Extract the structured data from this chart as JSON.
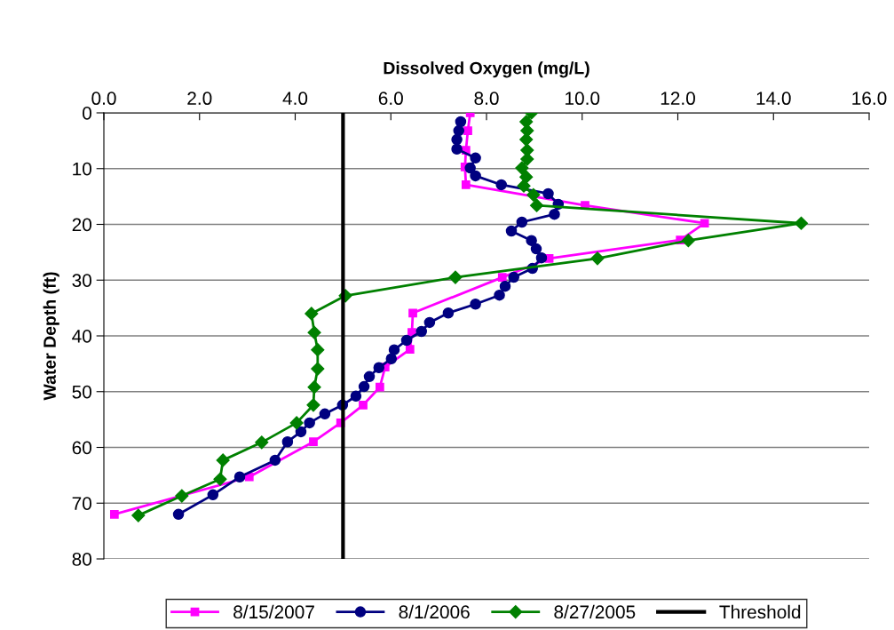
{
  "chart_data": {
    "type": "line",
    "xlabel": "Dissolved Oxygen (mg/L)",
    "ylabel": "Water Depth (ft)",
    "xlim": [
      0,
      16
    ],
    "xticks": [
      {
        "value": 0,
        "label": "0.0"
      },
      {
        "value": 2,
        "label": "2.0"
      },
      {
        "value": 4,
        "label": "4.0"
      },
      {
        "value": 6,
        "label": "6.0"
      },
      {
        "value": 8,
        "label": "8.0"
      },
      {
        "value": 10,
        "label": "10.0"
      },
      {
        "value": 12,
        "label": "12.0"
      },
      {
        "value": 14,
        "label": "14.0"
      },
      {
        "value": 16,
        "label": "16.0"
      }
    ],
    "ylim": [
      80,
      0
    ],
    "yticks": [
      0,
      10,
      20,
      30,
      40,
      50,
      60,
      70,
      80
    ],
    "grid": "y",
    "legend": "bottom",
    "line_style": "solid",
    "series": [
      {
        "name": "8/15/2007",
        "color": "#ff00ff",
        "marker": "square",
        "x": [
          7.66,
          7.61,
          7.57,
          7.55,
          7.57,
          10.06,
          12.56,
          12.05,
          9.31,
          8.33,
          6.46,
          6.44,
          6.4,
          5.88,
          5.77,
          5.42,
          4.95,
          4.38,
          3.04,
          0.22
        ],
        "values": [
          0,
          3.2,
          6.7,
          9.7,
          12.9,
          16.6,
          19.8,
          22.8,
          26.1,
          29.5,
          35.9,
          39.4,
          42.4,
          45.6,
          49.2,
          52.4,
          55.6,
          59.0,
          65.3,
          72.0
        ]
      },
      {
        "name": "8/1/2006",
        "color": "#000080",
        "marker": "circle",
        "x": [
          7.46,
          7.42,
          7.38,
          7.38,
          7.77,
          7.66,
          7.77,
          8.31,
          9.29,
          9.5,
          9.42,
          8.74,
          8.52,
          8.94,
          9.04,
          9.15,
          8.96,
          8.57,
          8.39,
          8.27,
          7.77,
          7.2,
          6.81,
          6.64,
          6.33,
          6.07,
          6.01,
          5.75,
          5.55,
          5.44,
          5.27,
          4.99,
          4.62,
          4.3,
          4.12,
          3.84,
          3.58,
          2.84,
          2.28,
          1.56
        ],
        "values": [
          1.6,
          3.2,
          4.8,
          6.5,
          8.1,
          9.9,
          11.3,
          12.9,
          14.5,
          16.4,
          18.2,
          19.6,
          21.2,
          22.9,
          24.4,
          26.0,
          27.9,
          29.5,
          31.1,
          32.7,
          34.3,
          35.9,
          37.6,
          39.2,
          40.8,
          42.5,
          44.1,
          45.7,
          47.3,
          49.1,
          50.8,
          52.4,
          54.0,
          55.6,
          57.2,
          59.0,
          62.3,
          65.3,
          68.5,
          72.0
        ]
      },
      {
        "name": "8/27/2005",
        "color": "#008000",
        "marker": "diamond",
        "x": [
          8.94,
          8.83,
          8.85,
          8.83,
          8.85,
          8.85,
          8.74,
          8.83,
          8.78,
          8.98,
          9.05,
          14.58,
          12.22,
          10.32,
          7.35,
          5.05,
          4.34,
          4.4,
          4.47,
          4.47,
          4.4,
          4.38,
          4.03,
          3.3,
          2.49,
          2.43,
          1.63,
          0.72
        ],
        "values": [
          0,
          1.6,
          3.2,
          4.8,
          6.7,
          8.3,
          9.9,
          11.5,
          13.1,
          14.7,
          16.6,
          19.8,
          22.9,
          26.1,
          29.5,
          32.8,
          36.0,
          39.4,
          42.5,
          45.9,
          49.2,
          52.4,
          55.6,
          59.1,
          62.3,
          65.7,
          68.7,
          72.2
        ]
      },
      {
        "name": "Threshold",
        "color": "#000000",
        "marker": "none",
        "x": [
          5,
          5
        ],
        "values": [
          0,
          80
        ]
      }
    ]
  }
}
